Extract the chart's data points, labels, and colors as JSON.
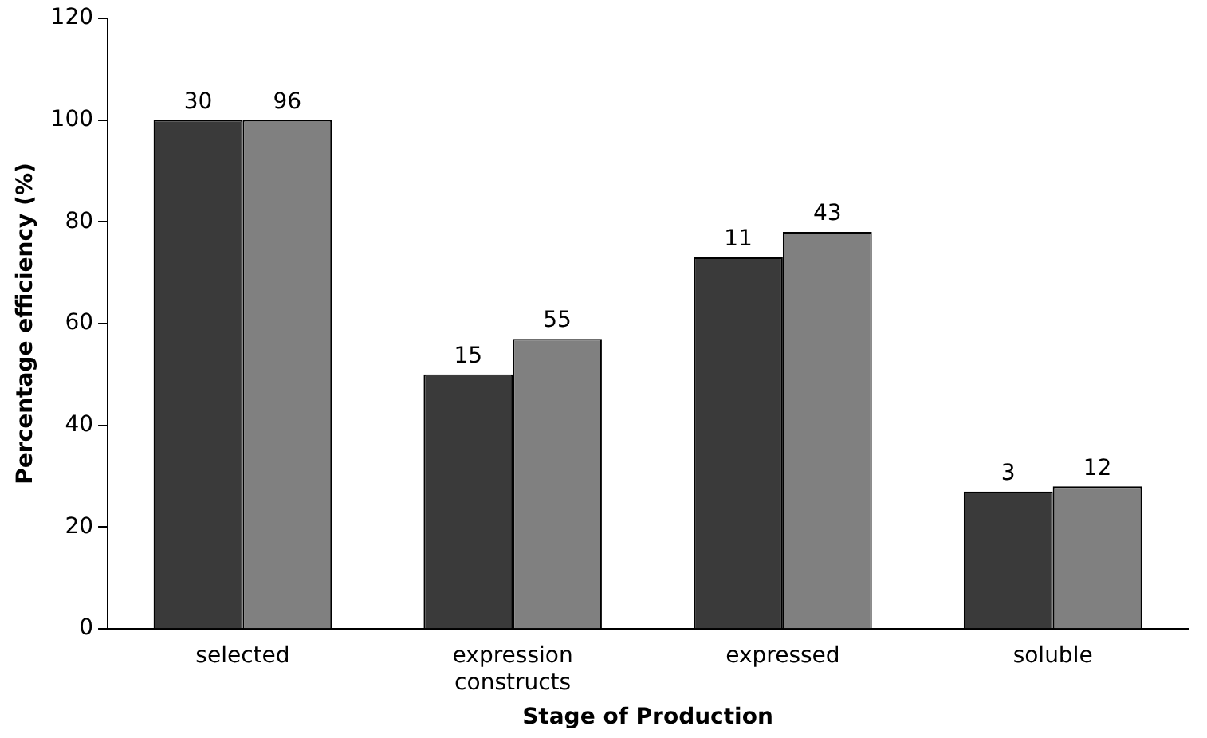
{
  "chart_data": {
    "type": "bar",
    "xlabel": "Stage of Production",
    "ylabel": "Percentage efficiency (%)",
    "categories": [
      "selected",
      "expression constructs",
      "expressed",
      "soluble"
    ],
    "series": [
      {
        "color": "#3a3a3a",
        "values": [
          100,
          50,
          73,
          27
        ]
      },
      {
        "color": "#808080",
        "values": [
          100,
          57,
          78,
          28
        ]
      }
    ],
    "annotations": [
      {
        "text": "30",
        "x": "selected",
        "y": 100
      },
      {
        "text": "96",
        "x": "selected",
        "y": 100
      },
      {
        "text": "15",
        "x": "expression constructs",
        "y": 50
      },
      {
        "text": "55",
        "x": "expression constructs",
        "y": 57
      },
      {
        "text": "11",
        "x": "expressed",
        "y": 73
      },
      {
        "text": "43",
        "x": "expressed",
        "y": 78
      },
      {
        "text": "3",
        "x": "soluble",
        "y": 27
      },
      {
        "text": "12",
        "x": "soluble",
        "y": 28
      }
    ],
    "ylim": [
      0,
      120
    ],
    "yticks": [
      0,
      20,
      40,
      60,
      80,
      100,
      120
    ],
    "grid": false,
    "legend": false
  }
}
